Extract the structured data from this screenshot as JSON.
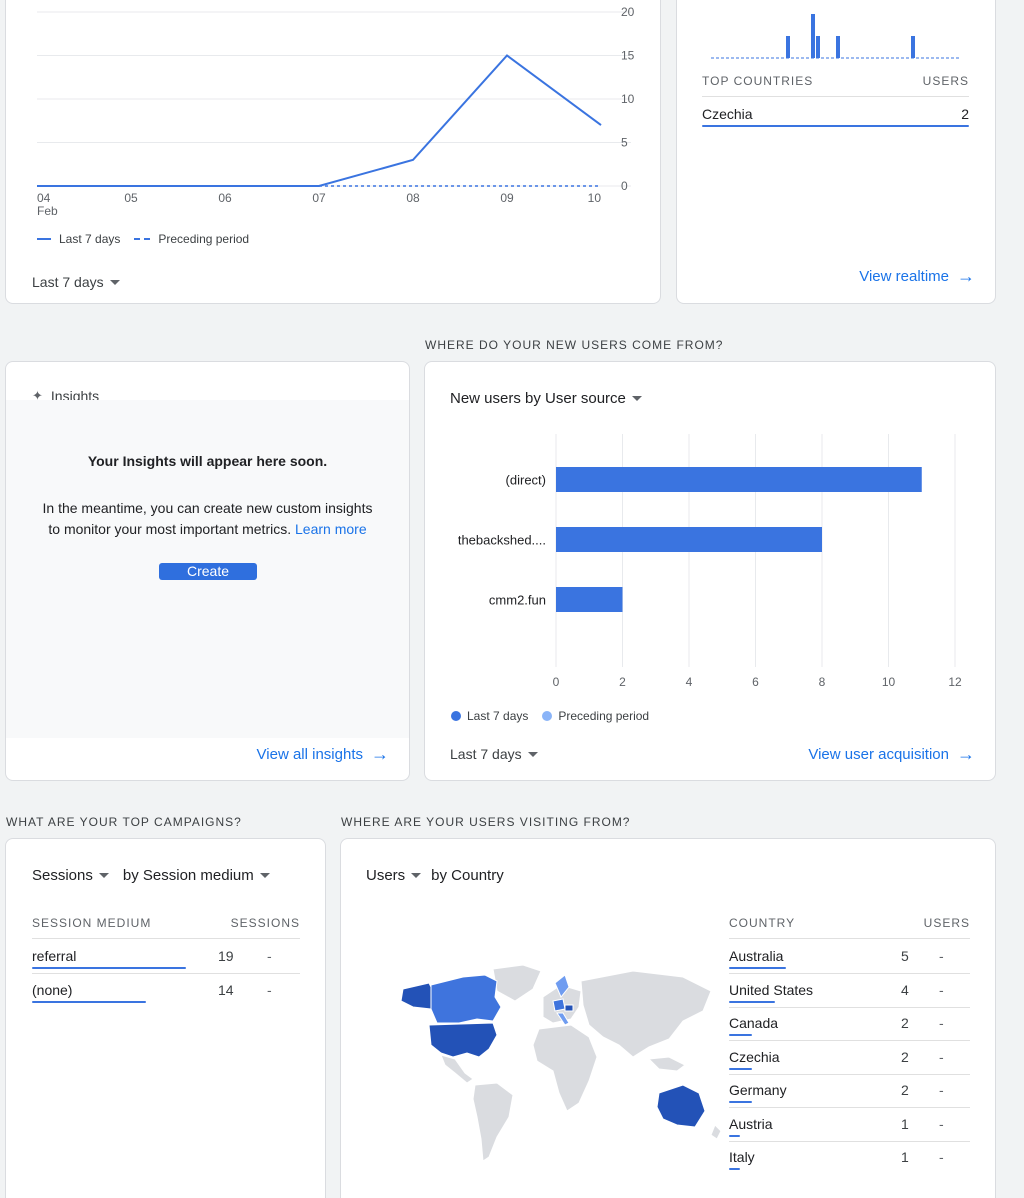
{
  "colors": {
    "accent": "#1a73e8",
    "series": "#3a74e0",
    "preceding": "#8ab4f8",
    "map_dark": "#2352b7",
    "map_mid": "#3f74dd",
    "map_light": "#6f9cf0",
    "land": "#dadce0"
  },
  "top_card": {
    "chart_data": {
      "type": "line",
      "x": [
        "04",
        "05",
        "06",
        "07",
        "08",
        "09",
        "10"
      ],
      "x_sublabel": "Feb",
      "series": [
        {
          "name": "Last 7 days",
          "values": [
            0,
            0,
            0,
            0,
            3,
            15,
            7
          ]
        },
        {
          "name": "Preceding period",
          "values": [
            0,
            0,
            0,
            0,
            0,
            0,
            0
          ]
        }
      ],
      "y_ticks": [
        "20",
        "15",
        "10",
        "5",
        "0"
      ],
      "ylim": [
        0,
        20
      ]
    },
    "legend": {
      "current": "Last 7 days",
      "preceding": "Preceding period"
    },
    "period": "Last 7 days"
  },
  "realtime": {
    "chart_data": {
      "type": "bar",
      "values": [
        0,
        0,
        0,
        0,
        0,
        0,
        0,
        0,
        0,
        0,
        0,
        0,
        0,
        0,
        0,
        1,
        0,
        0,
        0,
        0,
        2,
        1,
        0,
        0,
        0,
        1,
        0,
        0,
        0,
        0,
        0,
        0,
        0,
        0,
        0,
        0,
        0,
        0,
        0,
        0,
        1,
        0,
        0,
        0,
        0,
        0,
        0,
        0,
        0,
        0
      ],
      "ylim": [
        0,
        2
      ]
    },
    "col_country": "TOP COUNTRIES",
    "col_users": "USERS",
    "rows": [
      {
        "country": "Czechia",
        "users": "2"
      }
    ],
    "view_link": "View realtime"
  },
  "new_users_section": "WHERE DO YOUR NEW USERS COME FROM?",
  "insights": {
    "title": "Insights",
    "headline": "Your Insights will appear here soon.",
    "body_line1": "In the meantime, you can create new custom insights",
    "body_line2": "to monitor your most important metrics.",
    "learn_more": "Learn more",
    "create": "Create",
    "view_all": "View all insights"
  },
  "acquisition": {
    "dropdown": "New users by User source",
    "chart_data": {
      "type": "bar",
      "orientation": "horizontal",
      "categories": [
        "(direct)",
        "thebackshed....",
        "cmm2.fun"
      ],
      "series": [
        {
          "name": "Last 7 days",
          "values": [
            11,
            8,
            2
          ]
        },
        {
          "name": "Preceding period",
          "values": [
            0,
            0,
            0
          ]
        }
      ],
      "x_ticks": [
        "0",
        "2",
        "4",
        "6",
        "8",
        "10",
        "12"
      ],
      "xlim": [
        0,
        12
      ]
    },
    "legend": {
      "current": "Last 7 days",
      "preceding": "Preceding period"
    },
    "period": "Last 7 days",
    "view_link": "View user acquisition"
  },
  "campaigns_section": "WHAT ARE YOUR TOP CAMPAIGNS?",
  "campaigns": {
    "metric_dropdown": "Sessions",
    "dimension_dropdown": "by Session medium",
    "col_medium": "SESSION MEDIUM",
    "col_sessions": "SESSIONS",
    "rows": [
      {
        "medium": "referral",
        "sessions": "19",
        "change": "-",
        "share": 1.0
      },
      {
        "medium": "(none)",
        "sessions": "14",
        "change": "-",
        "share": 0.74
      }
    ]
  },
  "visiting_section": "WHERE ARE YOUR USERS VISITING FROM?",
  "countries": {
    "metric_dropdown": "Users",
    "dimension_label": "by Country",
    "col_country": "COUNTRY",
    "col_users": "USERS",
    "rows": [
      {
        "country": "Australia",
        "users": "5",
        "change": "-",
        "share": 1.0
      },
      {
        "country": "United States",
        "users": "4",
        "change": "-",
        "share": 0.8
      },
      {
        "country": "Canada",
        "users": "2",
        "change": "-",
        "share": 0.4
      },
      {
        "country": "Czechia",
        "users": "2",
        "change": "-",
        "share": 0.4
      },
      {
        "country": "Germany",
        "users": "2",
        "change": "-",
        "share": 0.4
      },
      {
        "country": "Austria",
        "users": "1",
        "change": "-",
        "share": 0.2
      },
      {
        "country": "Italy",
        "users": "1",
        "change": "-",
        "share": 0.2
      }
    ]
  }
}
